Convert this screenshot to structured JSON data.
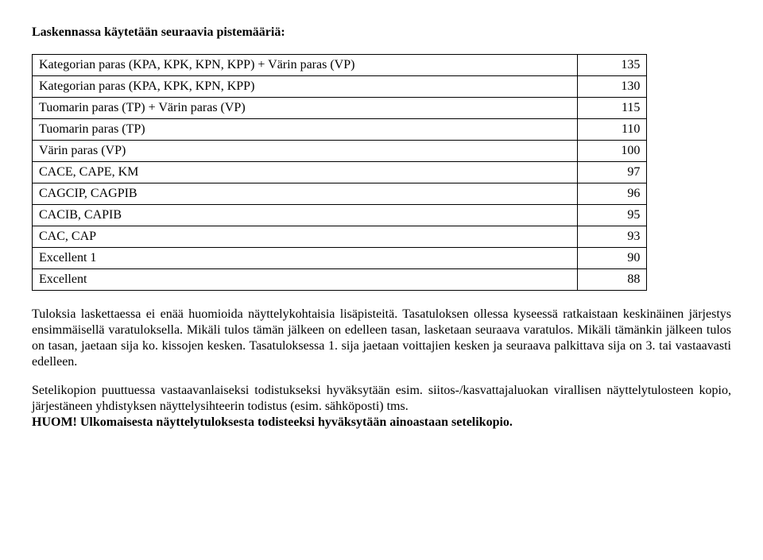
{
  "heading": "Laskennassa käytetään seuraavia pistemääriä:",
  "table": {
    "rows": [
      {
        "label": "Kategorian paras (KPA, KPK, KPN, KPP) + Värin paras (VP)",
        "value": "135"
      },
      {
        "label": "Kategorian paras (KPA, KPK, KPN, KPP)",
        "value": "130"
      },
      {
        "label": "Tuomarin paras (TP) + Värin paras (VP)",
        "value": "115"
      },
      {
        "label": "Tuomarin paras (TP)",
        "value": "110"
      },
      {
        "label": "Värin paras (VP)",
        "value": "100"
      },
      {
        "label": "CACE, CAPE, KM",
        "value": "97"
      },
      {
        "label": "CAGCIP, CAGPIB",
        "value": "96"
      },
      {
        "label": "CACIB, CAPIB",
        "value": "95"
      },
      {
        "label": "CAC, CAP",
        "value": "93"
      },
      {
        "label": "Excellent 1",
        "value": "90"
      },
      {
        "label": "Excellent",
        "value": "88"
      }
    ]
  },
  "para1": "Tuloksia laskettaessa ei enää huomioida näyttelykohtaisia lisäpisteitä. Tasatuloksen ollessa kyseessä ratkaistaan keskinäinen järjestys ensimmäisellä varatuloksella. Mikäli tulos tämän jälkeen on edelleen tasan, lasketaan seuraava varatulos. Mikäli tämänkin jälkeen tulos on tasan, jaetaan sija ko. kissojen kesken. Tasatuloksessa 1. sija jaetaan voittajien kesken ja seuraava palkittava sija on 3. tai vastaavasti edelleen.",
  "para2_a": "Setelikopion puuttuessa vastaavanlaiseksi todistukseksi hyväksytään esim. siitos-/kasvattajaluokan virallisen näyttelytulosteen kopio, järjestäneen yhdistyksen näyttelysihteerin todistus (esim. sähköposti) tms.",
  "para2_b": "HUOM! Ulkomaisesta näyttelytuloksesta todisteeksi hyväksytään ainoastaan setelikopio."
}
